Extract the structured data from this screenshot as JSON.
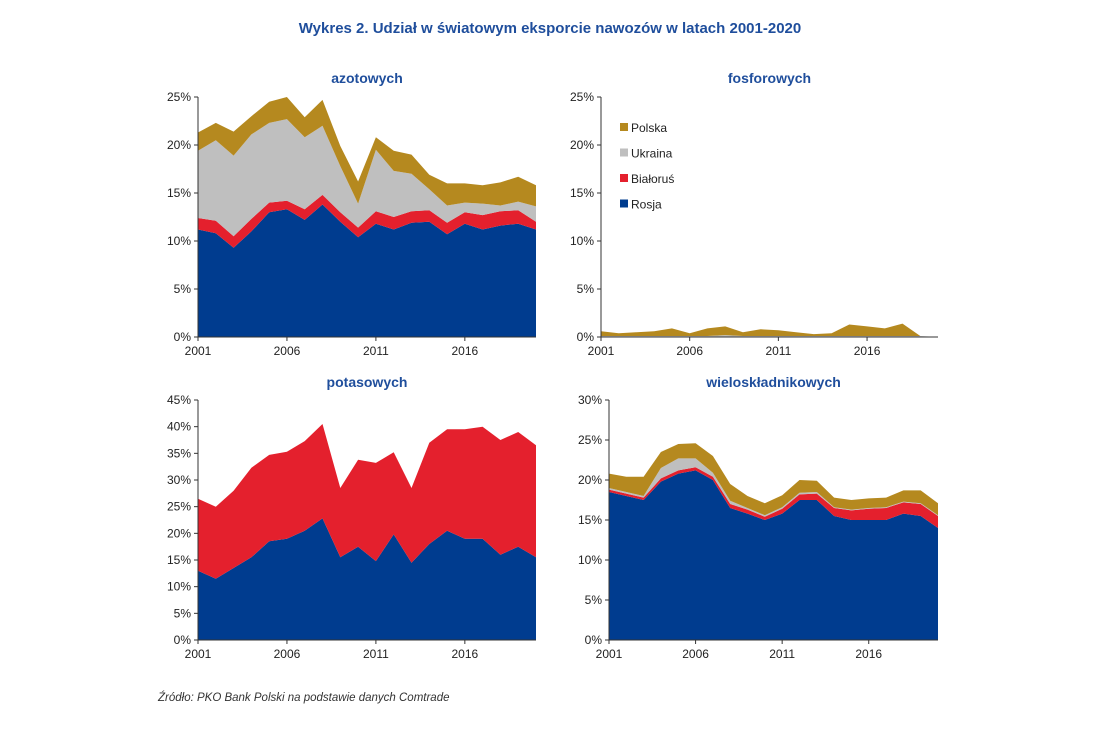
{
  "title": "Wykres 2. Udział w światowym eksporcie nawozów w latach 2001-2020",
  "source": "Źródło: PKO Bank Polski na podstawie danych Comtrade",
  "colors": {
    "Rosja": "#003c8f",
    "Białoruś": "#e4202d",
    "Ukraina": "#bfbfbf",
    "Polska": "#b5891f"
  },
  "chart_data": [
    {
      "type": "area",
      "stacked": true,
      "title": "azotowych",
      "x": [
        2001,
        2002,
        2003,
        2004,
        2005,
        2006,
        2007,
        2008,
        2009,
        2010,
        2011,
        2012,
        2013,
        2014,
        2015,
        2016,
        2017,
        2018,
        2019,
        2020
      ],
      "xticks": [
        "2001",
        "2006",
        "2011",
        "2016"
      ],
      "ylim": [
        0,
        25
      ],
      "yticks": [
        "0%",
        "5%",
        "10%",
        "15%",
        "20%",
        "25%"
      ],
      "series": [
        {
          "name": "Rosja",
          "values": [
            11.2,
            10.8,
            9.3,
            11.0,
            13.0,
            13.3,
            12.2,
            13.8,
            12.0,
            10.4,
            11.8,
            11.2,
            11.9,
            12.0,
            10.7,
            11.8,
            11.2,
            11.6,
            11.8,
            11.2
          ]
        },
        {
          "name": "Białoruś",
          "values": [
            1.2,
            1.3,
            1.2,
            1.3,
            1.0,
            0.9,
            1.1,
            1.0,
            1.0,
            1.0,
            1.3,
            1.3,
            1.2,
            1.2,
            1.2,
            1.2,
            1.5,
            1.5,
            1.4,
            0.8
          ]
        },
        {
          "name": "Ukraina",
          "values": [
            7.0,
            8.4,
            8.4,
            8.8,
            8.3,
            8.5,
            7.5,
            7.2,
            4.8,
            2.5,
            6.4,
            4.8,
            3.9,
            2.2,
            1.8,
            1.0,
            1.2,
            0.6,
            0.9,
            1.6
          ]
        },
        {
          "name": "Polska",
          "values": [
            1.9,
            1.8,
            2.5,
            1.9,
            2.2,
            2.3,
            2.1,
            2.7,
            2.1,
            2.3,
            1.3,
            2.1,
            2.0,
            1.5,
            2.3,
            2.0,
            1.9,
            2.4,
            2.6,
            2.2
          ]
        }
      ],
      "legend": null
    },
    {
      "type": "area",
      "stacked": true,
      "title": "fosforowych",
      "x": [
        2001,
        2002,
        2003,
        2004,
        2005,
        2006,
        2007,
        2008,
        2009,
        2010,
        2011,
        2012,
        2013,
        2014,
        2015,
        2016,
        2017,
        2018,
        2019,
        2020
      ],
      "xticks": [
        "2001",
        "2006",
        "2011",
        "2016"
      ],
      "ylim": [
        0,
        25
      ],
      "yticks": [
        "0%",
        "5%",
        "10%",
        "15%",
        "20%",
        "25%"
      ],
      "series": [
        {
          "name": "Rosja",
          "values": [
            0,
            0,
            0,
            0,
            0,
            0,
            0,
            0,
            0,
            0,
            0,
            0,
            0,
            0,
            0,
            0,
            0,
            0,
            0,
            0
          ]
        },
        {
          "name": "Białoruś",
          "values": [
            0,
            0,
            0,
            0,
            0,
            0,
            0,
            0,
            0,
            0,
            0,
            0,
            0,
            0,
            0,
            0,
            0,
            0,
            0,
            0
          ]
        },
        {
          "name": "Ukraina",
          "values": [
            0.1,
            0.1,
            0.1,
            0.1,
            0.1,
            0.1,
            0.1,
            0.2,
            0.1,
            0.1,
            0.1,
            0.1,
            0.1,
            0.1,
            0.1,
            0.1,
            0.1,
            0.1,
            0.1,
            0
          ]
        },
        {
          "name": "Polska",
          "values": [
            0.5,
            0.3,
            0.4,
            0.5,
            0.8,
            0.3,
            0.8,
            0.9,
            0.4,
            0.7,
            0.6,
            0.4,
            0.2,
            0.3,
            1.2,
            1.0,
            0.8,
            1.3,
            0,
            0
          ]
        }
      ],
      "legend": {
        "position": "top-left",
        "entries": [
          "Polska",
          "Ukraina",
          "Białoruś",
          "Rosja"
        ]
      }
    },
    {
      "type": "area",
      "stacked": true,
      "title": "potasowych",
      "x": [
        2001,
        2002,
        2003,
        2004,
        2005,
        2006,
        2007,
        2008,
        2009,
        2010,
        2011,
        2012,
        2013,
        2014,
        2015,
        2016,
        2017,
        2018,
        2019,
        2020
      ],
      "xticks": [
        "2001",
        "2006",
        "2011",
        "2016"
      ],
      "ylim": [
        0,
        45
      ],
      "yticks": [
        "0%",
        "5%",
        "10%",
        "15%",
        "20%",
        "25%",
        "30%",
        "35%",
        "40%",
        "45%"
      ],
      "series": [
        {
          "name": "Rosja",
          "values": [
            13.0,
            11.5,
            13.5,
            15.5,
            18.5,
            19.0,
            20.5,
            22.8,
            15.5,
            17.5,
            14.8,
            19.8,
            14.5,
            18.0,
            20.5,
            19.0,
            19.0,
            16.0,
            17.5,
            15.5
          ]
        },
        {
          "name": "Białoruś",
          "values": [
            13.5,
            13.5,
            14.5,
            16.8,
            16.2,
            16.3,
            16.8,
            17.7,
            13.0,
            16.3,
            18.4,
            15.4,
            14.0,
            19.0,
            19.0,
            20.5,
            21.0,
            21.5,
            21.5,
            21.0
          ]
        },
        {
          "name": "Ukraina",
          "values": [
            0,
            0,
            0,
            0,
            0,
            0,
            0,
            0,
            0,
            0,
            0,
            0,
            0,
            0,
            0,
            0,
            0,
            0,
            0,
            0
          ]
        },
        {
          "name": "Polska",
          "values": [
            0,
            0,
            0,
            0,
            0,
            0,
            0,
            0,
            0,
            0,
            0,
            0,
            0,
            0,
            0,
            0,
            0,
            0,
            0,
            0
          ]
        }
      ],
      "legend": null
    },
    {
      "type": "area",
      "stacked": true,
      "title": "wieloskładnikowych",
      "x": [
        2001,
        2002,
        2003,
        2004,
        2005,
        2006,
        2007,
        2008,
        2009,
        2010,
        2011,
        2012,
        2013,
        2014,
        2015,
        2016,
        2017,
        2018,
        2019,
        2020
      ],
      "xticks": [
        "2001",
        "2006",
        "2011",
        "2016"
      ],
      "ylim": [
        0,
        30
      ],
      "yticks": [
        "0%",
        "5%",
        "10%",
        "15%",
        "20%",
        "25%",
        "30%"
      ],
      "series": [
        {
          "name": "Rosja",
          "values": [
            18.5,
            18.0,
            17.5,
            19.8,
            20.8,
            21.2,
            20.0,
            16.5,
            15.8,
            15.0,
            15.8,
            17.5,
            17.5,
            15.5,
            15.0,
            15.0,
            15.0,
            15.8,
            15.5,
            14.0
          ]
        },
        {
          "name": "Białoruś",
          "values": [
            0.3,
            0.3,
            0.3,
            0.4,
            0.4,
            0.4,
            0.4,
            0.5,
            0.5,
            0.4,
            0.6,
            0.7,
            0.8,
            1.0,
            1.2,
            1.4,
            1.5,
            1.4,
            1.5,
            1.5
          ]
        },
        {
          "name": "Ukraina",
          "values": [
            0.2,
            0.2,
            0.2,
            1.3,
            1.5,
            1.1,
            0.5,
            0.4,
            0.2,
            0.2,
            0.2,
            0.2,
            0.2,
            0.1,
            0.1,
            0.1,
            0.1,
            0.1,
            0.1,
            0.1
          ]
        },
        {
          "name": "Polska",
          "values": [
            1.8,
            1.9,
            2.4,
            2.0,
            1.8,
            1.9,
            2.1,
            2.1,
            1.5,
            1.5,
            1.5,
            1.6,
            1.4,
            1.2,
            1.2,
            1.2,
            1.2,
            1.4,
            1.6,
            1.5
          ]
        }
      ],
      "legend": null
    }
  ]
}
